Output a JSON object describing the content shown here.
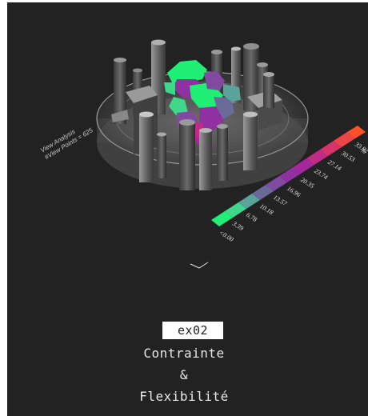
{
  "analysis": {
    "line1": "View Analysis",
    "line2": "#View Points = 625"
  },
  "legend": {
    "values": [
      "<0.00",
      "3.39",
      "6.78",
      "10.18",
      "13.57",
      "16.96",
      "20.35",
      "23.74",
      "27.14",
      "30.53",
      "33.92<"
    ],
    "unit": "%",
    "colors": [
      "#1fef74",
      "#3fd88a",
      "#5aa39a",
      "#6a6a9a",
      "#7f4aa0",
      "#9130a0",
      "#a4289b",
      "#bf2c86",
      "#d8346a",
      "#ec4448",
      "#ff5028"
    ]
  },
  "project": {
    "tag": "ex02",
    "title_line1": "Contrainte",
    "title_line2": "&",
    "title_line3": "Flexibilité"
  },
  "icons": {
    "scroll": "chevron-down-icon"
  }
}
